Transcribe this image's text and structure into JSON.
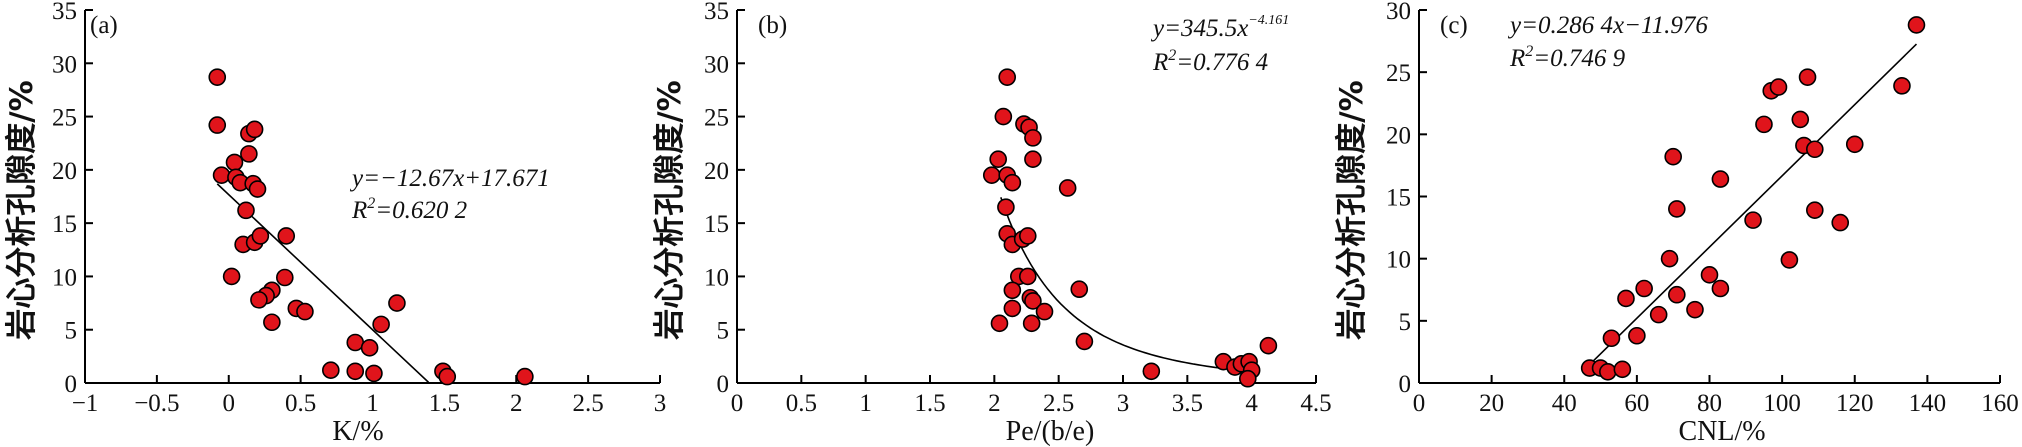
{
  "chart_data": [
    {
      "type": "scatter",
      "panel_label": "(a)",
      "xlabel": "K/%",
      "ylabel": "岩心分析孔隙度/%",
      "xlim": [
        -1,
        3
      ],
      "ylim": [
        0,
        35
      ],
      "xticks": [
        "-1",
        "-0.5",
        "0",
        "0.5",
        "1",
        "1.5",
        "2",
        "2.5",
        "3"
      ],
      "yticks": [
        "0",
        "5",
        "10",
        "15",
        "20",
        "25",
        "30",
        "35"
      ],
      "equation": "y=−12.67x+17.671",
      "r2": "R2=0.620 2",
      "fit": {
        "kind": "linear",
        "slope": -12.67,
        "intercept": 17.671,
        "x_range": [
          -0.08,
          1.39
        ]
      },
      "points": [
        {
          "x": -0.08,
          "y": 28.7
        },
        {
          "x": -0.08,
          "y": 24.2
        },
        {
          "x": -0.05,
          "y": 19.5
        },
        {
          "x": 0.04,
          "y": 20.7
        },
        {
          "x": 0.05,
          "y": 19.3
        },
        {
          "x": 0.08,
          "y": 18.8
        },
        {
          "x": 0.14,
          "y": 23.4
        },
        {
          "x": 0.18,
          "y": 23.8
        },
        {
          "x": 0.14,
          "y": 21.5
        },
        {
          "x": 0.17,
          "y": 18.7
        },
        {
          "x": 0.2,
          "y": 18.2
        },
        {
          "x": 0.12,
          "y": 16.2
        },
        {
          "x": 0.1,
          "y": 13.0
        },
        {
          "x": 0.18,
          "y": 13.2
        },
        {
          "x": 0.22,
          "y": 13.8
        },
        {
          "x": 0.4,
          "y": 13.8
        },
        {
          "x": 0.02,
          "y": 10.0
        },
        {
          "x": 0.39,
          "y": 9.9
        },
        {
          "x": 0.3,
          "y": 8.7
        },
        {
          "x": 0.26,
          "y": 8.2
        },
        {
          "x": 0.21,
          "y": 7.8
        },
        {
          "x": 0.47,
          "y": 7.0
        },
        {
          "x": 0.53,
          "y": 6.7
        },
        {
          "x": 0.3,
          "y": 5.7
        },
        {
          "x": 1.17,
          "y": 7.5
        },
        {
          "x": 1.06,
          "y": 5.5
        },
        {
          "x": 0.88,
          "y": 3.8
        },
        {
          "x": 0.98,
          "y": 3.3
        },
        {
          "x": 0.71,
          "y": 1.2
        },
        {
          "x": 0.88,
          "y": 1.1
        },
        {
          "x": 1.01,
          "y": 0.9
        },
        {
          "x": 1.49,
          "y": 1.1
        },
        {
          "x": 1.52,
          "y": 0.6
        },
        {
          "x": 2.06,
          "y": 0.6
        }
      ]
    },
    {
      "type": "scatter",
      "panel_label": "(b)",
      "xlabel": "Pe/(b/e)",
      "ylabel": "岩心分析孔隙度/%",
      "xlim": [
        0,
        4.5
      ],
      "ylim": [
        0,
        35
      ],
      "xticks": [
        "0",
        "0.5",
        "1",
        "1.5",
        "2",
        "2.5",
        "3",
        "3.5",
        "4",
        "4.5"
      ],
      "yticks": [
        "0",
        "5",
        "10",
        "15",
        "20",
        "25",
        "30",
        "35"
      ],
      "equation": "y=345.5x−4.161",
      "equation_base": "y=345.5x",
      "equation_exp": "−4.161",
      "r2": "R2=0.776 4",
      "fit": {
        "kind": "power",
        "a": 345.5,
        "b": -4.161,
        "x_range": [
          2.05,
          4.05
        ]
      },
      "points": [
        {
          "x": 2.1,
          "y": 28.7
        },
        {
          "x": 2.07,
          "y": 25.0
        },
        {
          "x": 2.23,
          "y": 24.3
        },
        {
          "x": 2.27,
          "y": 24.0
        },
        {
          "x": 2.3,
          "y": 23.0
        },
        {
          "x": 2.03,
          "y": 21.0
        },
        {
          "x": 2.3,
          "y": 21.0
        },
        {
          "x": 1.98,
          "y": 19.5
        },
        {
          "x": 2.1,
          "y": 19.5
        },
        {
          "x": 2.14,
          "y": 18.8
        },
        {
          "x": 2.57,
          "y": 18.3
        },
        {
          "x": 2.09,
          "y": 16.5
        },
        {
          "x": 2.1,
          "y": 14.0
        },
        {
          "x": 2.14,
          "y": 13.0
        },
        {
          "x": 2.22,
          "y": 13.5
        },
        {
          "x": 2.26,
          "y": 13.8
        },
        {
          "x": 2.19,
          "y": 10.0
        },
        {
          "x": 2.26,
          "y": 10.0
        },
        {
          "x": 2.14,
          "y": 8.7
        },
        {
          "x": 2.66,
          "y": 8.8
        },
        {
          "x": 2.28,
          "y": 8.0
        },
        {
          "x": 2.3,
          "y": 7.7
        },
        {
          "x": 2.14,
          "y": 7.0
        },
        {
          "x": 2.39,
          "y": 6.7
        },
        {
          "x": 2.04,
          "y": 5.6
        },
        {
          "x": 2.29,
          "y": 5.6
        },
        {
          "x": 2.7,
          "y": 3.9
        },
        {
          "x": 3.22,
          "y": 1.1
        },
        {
          "x": 3.78,
          "y": 2.0
        },
        {
          "x": 3.87,
          "y": 1.5
        },
        {
          "x": 3.92,
          "y": 1.8
        },
        {
          "x": 3.98,
          "y": 2.0
        },
        {
          "x": 4.0,
          "y": 1.2
        },
        {
          "x": 3.97,
          "y": 0.4
        },
        {
          "x": 4.13,
          "y": 3.5
        }
      ]
    },
    {
      "type": "scatter",
      "panel_label": "(c)",
      "xlabel": "CNL/%",
      "ylabel": "岩心分析孔隙度/%",
      "xlim": [
        0,
        160
      ],
      "ylim": [
        0,
        30
      ],
      "xticks": [
        "0",
        "20",
        "40",
        "60",
        "80",
        "100",
        "120",
        "140",
        "160"
      ],
      "yticks": [
        "0",
        "5",
        "10",
        "15",
        "20",
        "25",
        "30"
      ],
      "equation": "y=0.286 4x−11.976",
      "r2": "R2=0.746 9",
      "fit": {
        "kind": "linear",
        "slope": 0.2864,
        "intercept": -11.976,
        "x_range": [
          46,
          137
        ]
      },
      "points": [
        {
          "x": 47,
          "y": 1.2
        },
        {
          "x": 50,
          "y": 1.2
        },
        {
          "x": 52,
          "y": 0.9
        },
        {
          "x": 56,
          "y": 1.1
        },
        {
          "x": 53,
          "y": 3.6
        },
        {
          "x": 60,
          "y": 3.8
        },
        {
          "x": 57,
          "y": 6.8
        },
        {
          "x": 62,
          "y": 7.6
        },
        {
          "x": 66,
          "y": 5.5
        },
        {
          "x": 71,
          "y": 7.1
        },
        {
          "x": 76,
          "y": 5.9
        },
        {
          "x": 69,
          "y": 10.0
        },
        {
          "x": 70,
          "y": 18.2
        },
        {
          "x": 71,
          "y": 14.0
        },
        {
          "x": 80,
          "y": 8.7
        },
        {
          "x": 83,
          "y": 7.6
        },
        {
          "x": 83,
          "y": 16.4
        },
        {
          "x": 92,
          "y": 13.1
        },
        {
          "x": 95,
          "y": 20.8
        },
        {
          "x": 97,
          "y": 23.5
        },
        {
          "x": 99,
          "y": 23.8
        },
        {
          "x": 102,
          "y": 9.9
        },
        {
          "x": 105,
          "y": 21.2
        },
        {
          "x": 107,
          "y": 24.6
        },
        {
          "x": 106,
          "y": 19.1
        },
        {
          "x": 109,
          "y": 18.8
        },
        {
          "x": 109,
          "y": 13.9
        },
        {
          "x": 116,
          "y": 12.9
        },
        {
          "x": 120,
          "y": 19.2
        },
        {
          "x": 133,
          "y": 23.9
        },
        {
          "x": 137,
          "y": 28.8
        }
      ]
    }
  ]
}
